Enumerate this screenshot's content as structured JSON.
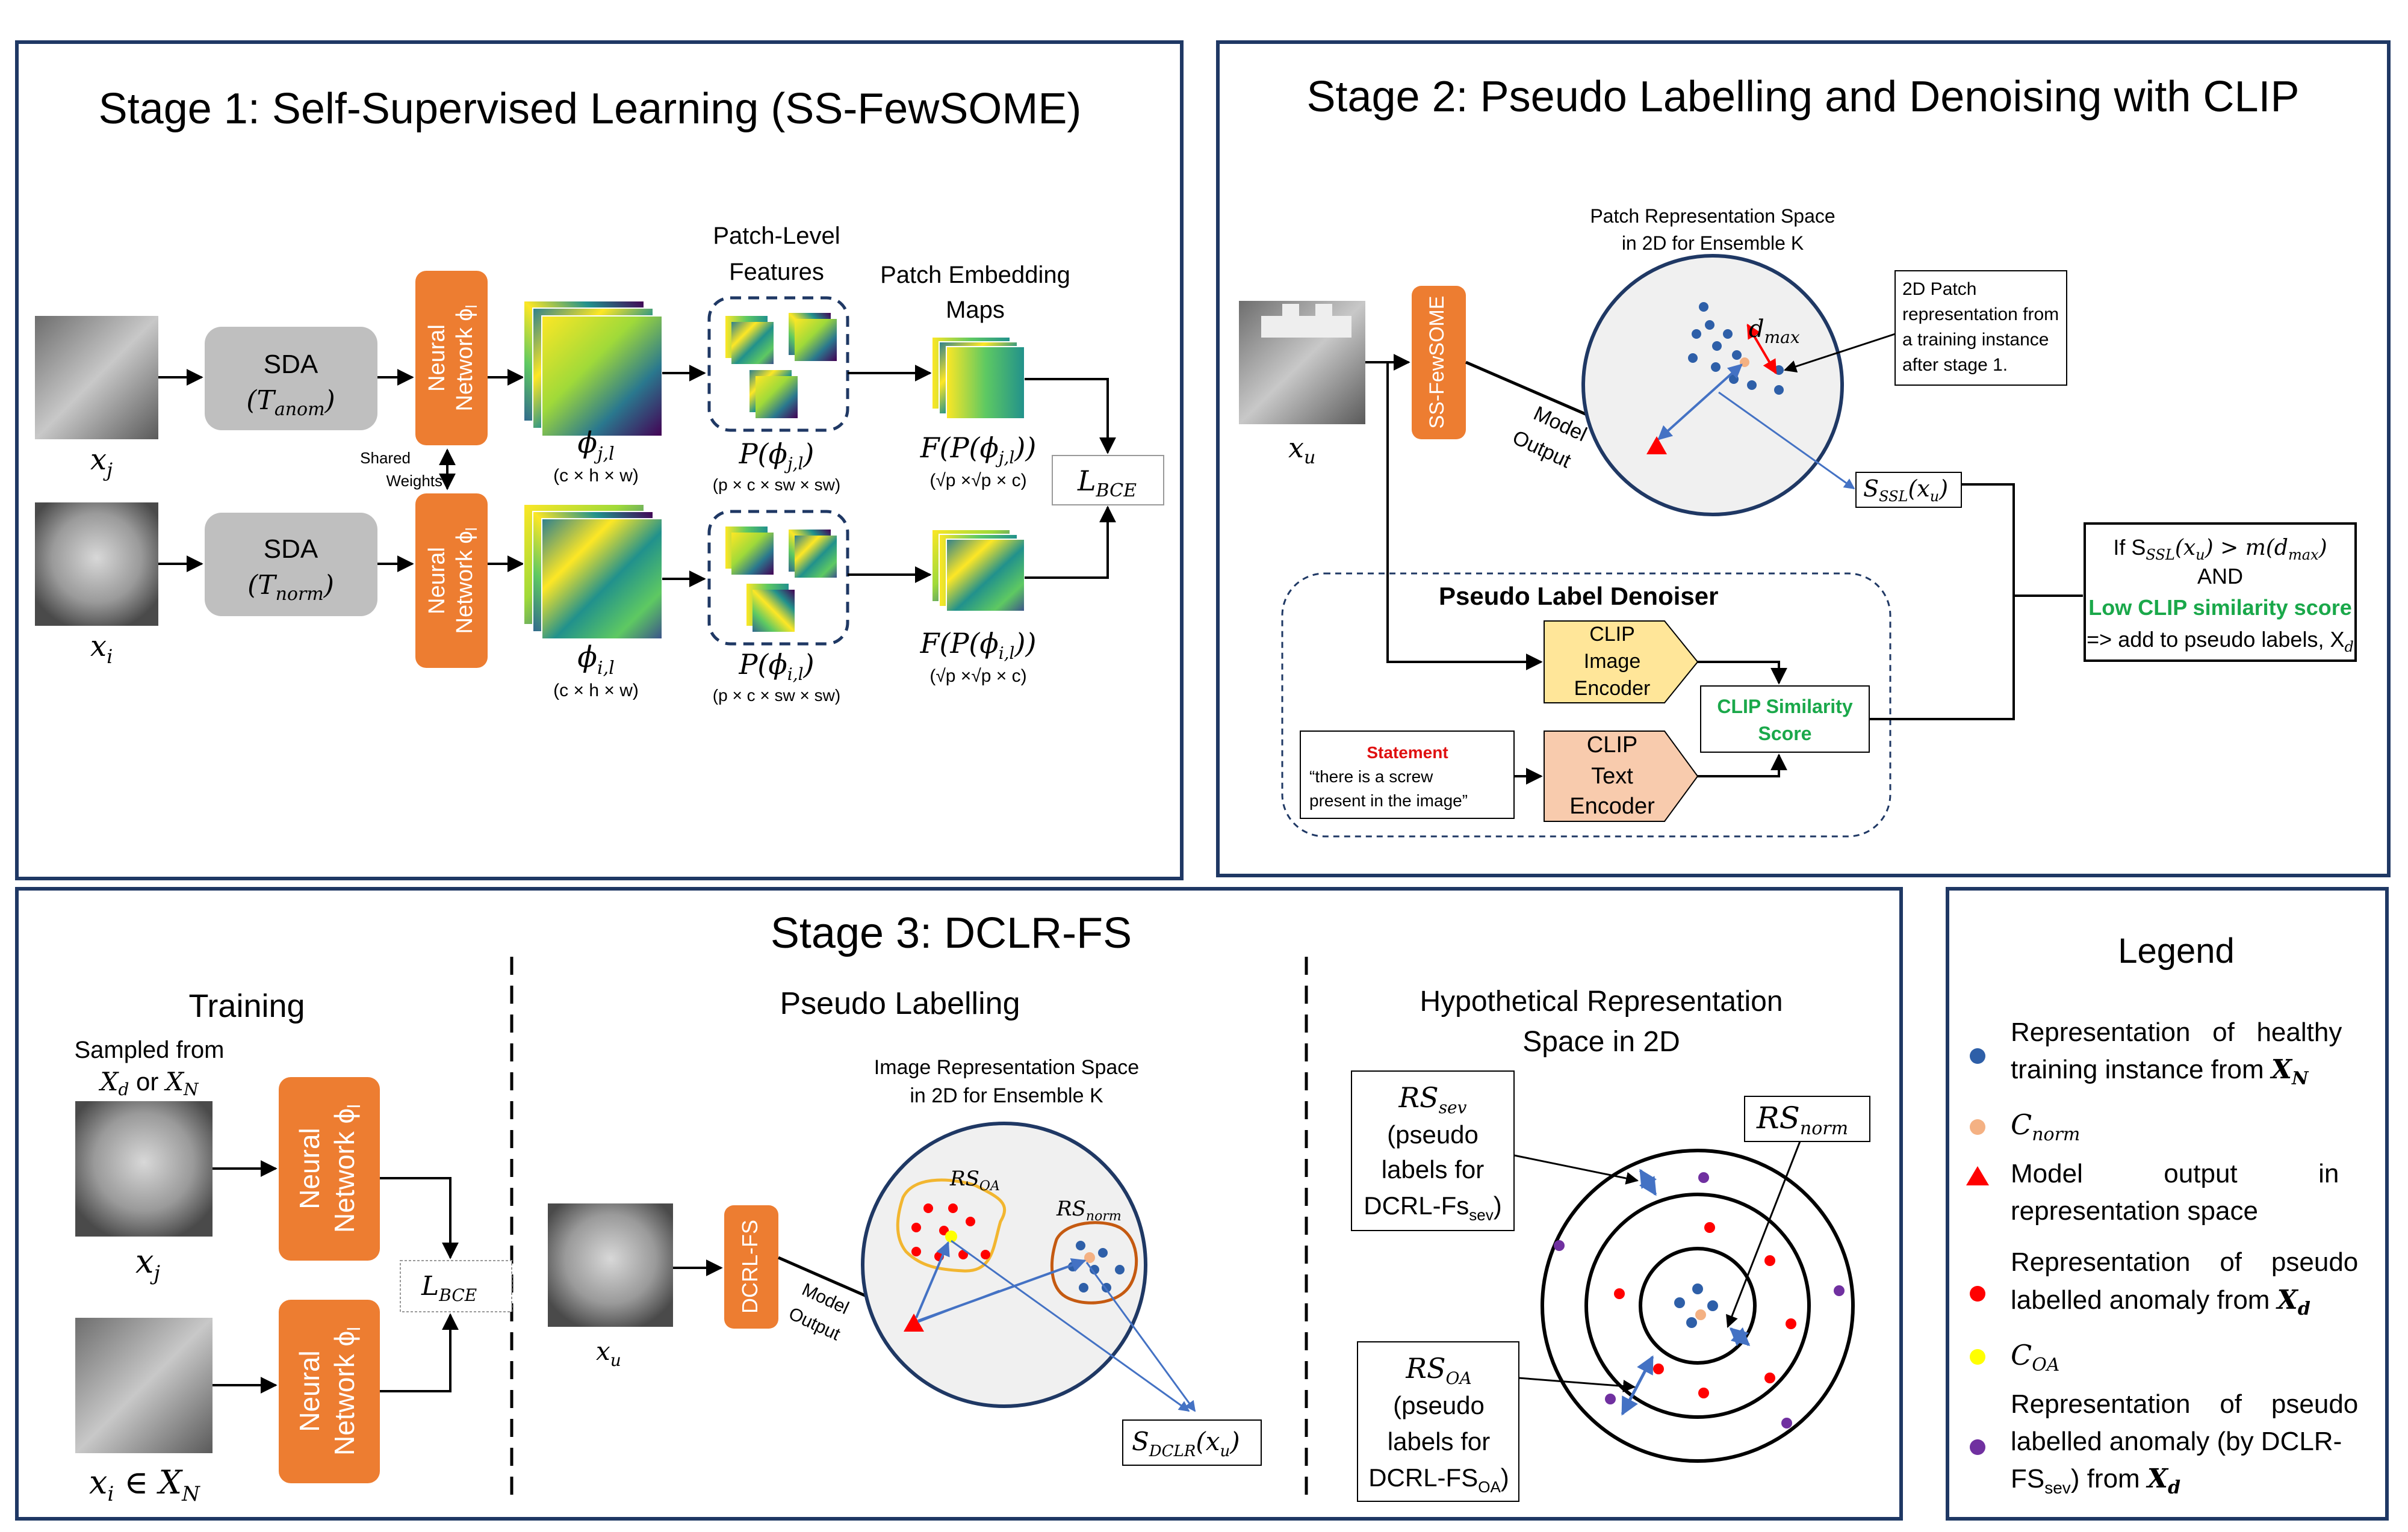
{
  "stage1": {
    "title": "Stage 1: Self-Supervised Learning (SS-FewSOME)",
    "x_j": "x",
    "x_j_sub": "j",
    "x_i": "x",
    "x_i_sub": "i",
    "sda_label": "SDA",
    "sda_top_param": "(T",
    "sda_top_param_sub": "anom",
    "sda_bottom_param": "(T",
    "sda_bottom_param_sub": "norm",
    "close_paren": ")",
    "nn_label_line1": "Neural",
    "nn_label_line2": "Network ϕ",
    "nn_label_sub": "l",
    "shared_weights_line1": "Shared",
    "shared_weights_line2": "Weights",
    "phi_j": "ϕ",
    "phi_j_sub": "j,l",
    "phi_i": "ϕ",
    "phi_i_sub": "i,l",
    "phi_dims": "(c × h × w)",
    "patch_features_line1": "Patch-Level",
    "patch_features_line2": "Features",
    "patch_embed_line1": "Patch Embedding",
    "patch_embed_line2": "Maps",
    "p_phi_j": "P(ϕ",
    "p_phi_j_sub": "j,l",
    "p_phi_i": "P(ϕ",
    "p_phi_i_sub": "i,l",
    "p_dims": "(p × c × sw × sw)",
    "f_phi_j": "F(P(ϕ",
    "f_phi_j_sub": "j,l",
    "f_phi_i": "F(P(ϕ",
    "f_phi_i_sub": "i,l",
    "f_close": "))",
    "f_dims": "(√p ×√p × c)",
    "loss": "L",
    "loss_sub": "BCE"
  },
  "stage2": {
    "title": "Stage 2: Pseudo Labelling and Denoising with CLIP",
    "x_u": "x",
    "x_u_sub": "u",
    "ssfewsome_label": "SS-FewSOME",
    "model_output_line1": "Model",
    "model_output_line2": "Output",
    "space_title_line1": "Patch Representation Space",
    "space_title_line2": "in 2D for Ensemble K",
    "d_max": "d",
    "d_max_sub": "max",
    "callout_lines": [
      "2D Patch",
      "representation from",
      "a training instance",
      "after stage 1."
    ],
    "s_ssl": "S",
    "s_ssl_sub": "SSL",
    "s_ssl_arg": "(x",
    "s_ssl_arg_sub": "u",
    "denoiser_title": "Pseudo Label Denoiser",
    "clip_image_lines": [
      "CLIP",
      "Image",
      "Encoder"
    ],
    "clip_text_lines": [
      "CLIP",
      "Text",
      "Encoder"
    ],
    "clip_similarity_lines": [
      "CLIP Similarity",
      "Score"
    ],
    "statement_title": "Statement",
    "statement_lines": [
      "“there is a screw",
      "present in the image”"
    ],
    "rule_line1": "If S",
    "rule_line1_rest": "(x",
    "rule_line1_end": ") > m(d",
    "rule_and": "AND",
    "rule_low_clip": "Low CLIP similarity score",
    "rule_add": "=> add to pseudo labels, X",
    "rule_add_sub": "d",
    "color_green": "#1aa84a",
    "color_red": "#e01010"
  },
  "stage3": {
    "title": "Stage 3: DCLR-FS",
    "training_title": "Training",
    "sampled_line1": "Sampled from",
    "sampled_line2a": "X",
    "sampled_line2a_sub": "d",
    "sampled_or": " or ",
    "sampled_line2b": "X",
    "sampled_line2b_sub": "N",
    "x_j": "x",
    "x_j_sub": "j",
    "x_i_in": "x",
    "x_i_in_sub": "i",
    "x_i_in_rest": " ∈ X",
    "x_i_in_rest_sub": "N",
    "nn_label_line1": "Neural",
    "nn_label_line2": "Network ϕ",
    "nn_label_sub": "l",
    "loss": "L",
    "loss_sub": "BCE",
    "pseudo_title": "Pseudo Labelling",
    "space_title_line1": "Image Representation Space",
    "space_title_line2": "in 2D for Ensemble K",
    "dcrl_label": "DCRL-FS",
    "x_u": "x",
    "x_u_sub": "u",
    "model_output_line1": "Model",
    "model_output_line2": "Output",
    "rs_oa": "RS",
    "rs_oa_sub": "OA",
    "rs_norm": "RS",
    "rs_norm_sub": "norm",
    "s_dclr": "S",
    "s_dclr_sub": "DCLR",
    "s_dclr_arg": "(x",
    "s_dclr_arg_sub": "u",
    "hypo_title_line1": "Hypothetical Representation",
    "hypo_title_line2": "Space in 2D",
    "rs_sev_box": [
      "(pseudo",
      "labels for",
      "DCRL-Fs"
    ],
    "rs_sev": "RS",
    "rs_sev_sub": "sev",
    "rs_sev_tail_sub": "sev",
    "rs_oa_box": [
      "(pseudo",
      "labels for",
      "DCRL-FS"
    ],
    "rs_oa_tail_sub": "OA",
    "rs_oa_close": ")",
    "rs_sev_close": ")"
  },
  "legend": {
    "title": "Legend",
    "items": [
      {
        "marker": "blue-dot",
        "line1": "Representation   of   healthy",
        "line2": "training instance from ",
        "line2_math": "X",
        "line2_math_sub": "N"
      },
      {
        "marker": "peach-dot",
        "math": "C",
        "math_sub": "norm"
      },
      {
        "marker": "red-triangle",
        "line1": "Model           output           in",
        "line2": "representation space"
      },
      {
        "marker": "red-dot",
        "line1": "Representation    of    pseudo",
        "line2": "labelled anomaly from ",
        "line2_math": "X",
        "line2_math_sub": "d"
      },
      {
        "marker": "yellow-dot",
        "math": "C",
        "math_sub": "OA"
      },
      {
        "marker": "purple-dot",
        "line1": "Representation    of    pseudo",
        "line2": "labelled anomaly (by DCLR-",
        "line3": "FS",
        "line3_sub": "sev",
        "line3_rest": ") from ",
        "line3_math": "X",
        "line3_math_sub": "d"
      }
    ]
  },
  "colors": {
    "frame": "#1f3864",
    "orange": "#ed7d31",
    "gray_box": "#bfbfbf",
    "blue_dot": "#2e5fa8",
    "peach": "#f4b183",
    "red": "#ff0000",
    "yellow": "#ffff00",
    "purple": "#7030a0",
    "arrow_blue": "#4472c4",
    "clip_image_fill": "#ffe699",
    "clip_text_fill": "#f8cbad",
    "circle_fill": "#f0f0f0"
  }
}
